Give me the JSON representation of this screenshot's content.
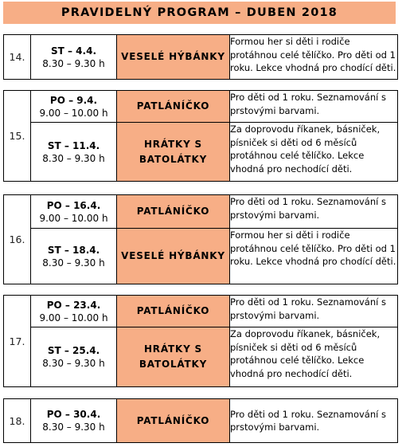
{
  "title": "PRAVIDELNÝ PROGRAM – DUBEN 2018",
  "weeks": [
    {
      "number": "14.",
      "events": [
        {
          "day": "ST – 4.4.",
          "time": "8.30 – 9.30 h",
          "program": "VESELÉ HÝBÁNKY",
          "description": "Formou her si děti i rodiče protáhnou celé tělíčko. Pro děti od 1 roku. Lekce vhodná pro chodící děti."
        }
      ]
    },
    {
      "number": "15.",
      "events": [
        {
          "day": "PO – 9.4.",
          "time": "9.00 – 10.00 h",
          "program": "PATLÁNÍČKO",
          "description": "Pro děti od 1 roku. Seznamování s prstovými barvami."
        },
        {
          "day": "ST – 11.4.",
          "time": "8.30 – 9.30 h",
          "program": "HRÁTKY S BATOLÁTKY",
          "description": "Za doprovodu říkanek, básniček, písniček si děti od 6 měsíců protáhnou celé tělíčko. Lekce vhodná pro nechodící děti."
        }
      ]
    },
    {
      "number": "16.",
      "events": [
        {
          "day": "PO – 16.4.",
          "time": "9.00 – 10.00 h",
          "program": "PATLÁNÍČKO",
          "description": "Pro děti od 1 roku. Seznamování s prstovými barvami."
        },
        {
          "day": "ST – 18.4.",
          "time": "8.30 – 9.30 h",
          "program": "VESELÉ HÝBÁNKY",
          "description": "Formou her si děti i rodiče protáhnou celé tělíčko. Pro děti od 1 roku. Lekce vhodná pro chodící děti."
        }
      ]
    },
    {
      "number": "17.",
      "events": [
        {
          "day": "PO – 23.4.",
          "time": "9.00 – 10.00 h",
          "program": "PATLÁNÍČKO",
          "description": "Pro děti od 1 roku. Seznamování s prstovými barvami."
        },
        {
          "day": "ST – 25.4.",
          "time": "8.30 – 9.30 h",
          "program": "HRÁTKY S BATOLÁTKY",
          "description": "Za doprovodu říkanek, básniček, písniček si děti od 6 měsíců protáhnou celé tělíčko. Lekce vhodná pro nechodící děti."
        }
      ]
    },
    {
      "number": "18.",
      "events": [
        {
          "day": "PO – 30.4.",
          "time": "8.30 – 9.30 h",
          "program": "PATLÁNÍČKO",
          "description": "Pro děti od 1 roku. Seznamování s prstovými barvami."
        }
      ]
    }
  ]
}
